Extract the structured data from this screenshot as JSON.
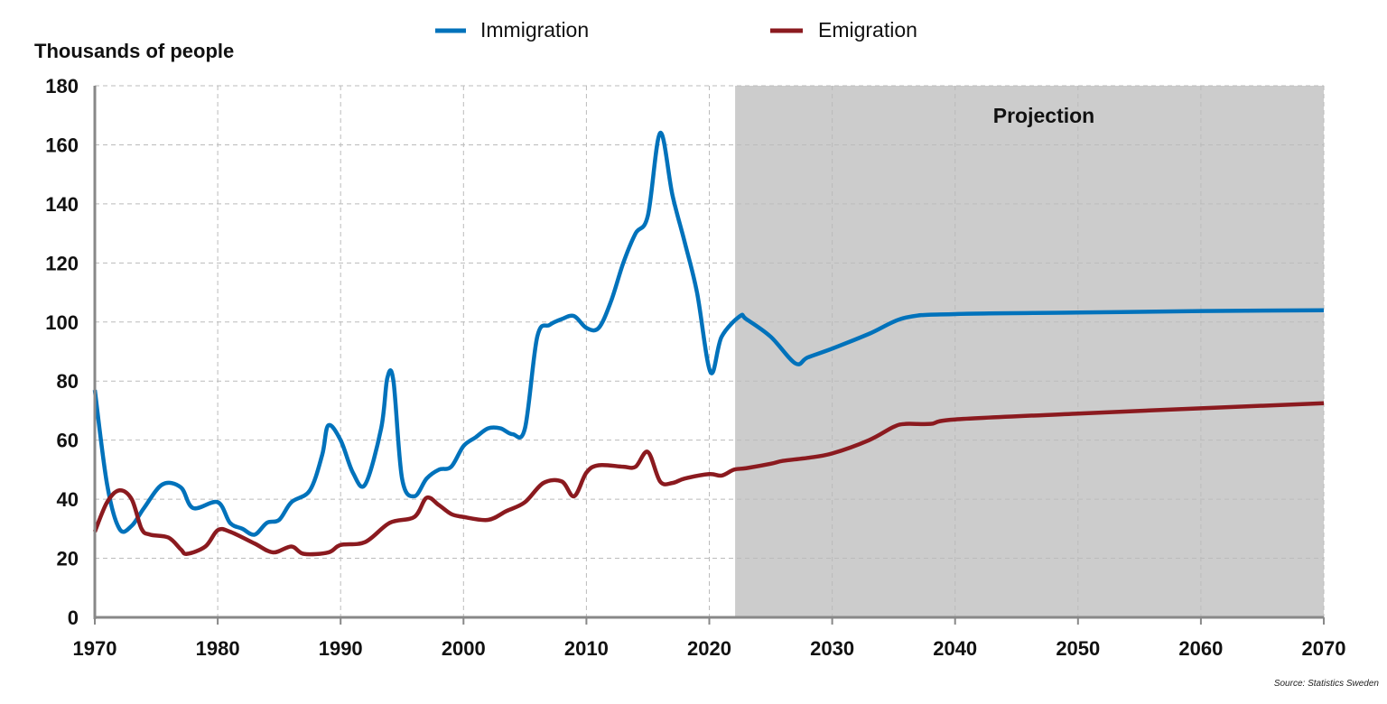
{
  "chart_data": {
    "type": "line",
    "title": "",
    "ylabel": "Thousands of people",
    "xlabel": "",
    "xlim": [
      1970,
      2070
    ],
    "ylim": [
      0,
      180
    ],
    "xticks": [
      1970,
      1980,
      1990,
      2000,
      2010,
      2020,
      2030,
      2040,
      2050,
      2060,
      2070
    ],
    "yticks": [
      0,
      20,
      40,
      60,
      80,
      100,
      120,
      140,
      160,
      180
    ],
    "grid": true,
    "legend_position": "top-center",
    "projection": {
      "label": "Projection",
      "start": 2022.1,
      "end": 2070,
      "color": "#cccccc"
    },
    "source": "Source: Statistics Sweden",
    "series": [
      {
        "name": "Immigration",
        "color": "#0072bb",
        "x": [
          1970,
          1971,
          1972,
          1973,
          1974,
          1975.5,
          1977,
          1978,
          1980,
          1981,
          1982,
          1983,
          1984,
          1985,
          1986,
          1987.5,
          1988.5,
          1989,
          1990,
          1991,
          1992,
          1993.3,
          1993.8,
          1994.3,
          1995,
          1996,
          1997,
          1998,
          1999,
          2000,
          2001,
          2002,
          2003,
          2004,
          2005,
          2006,
          2007,
          2008,
          2009,
          2010,
          2011,
          2012,
          2013,
          2014,
          2015,
          2016,
          2017,
          2018,
          2019,
          2020.1,
          2021,
          2022.5,
          2023,
          2025,
          2027,
          2028,
          2030,
          2033,
          2036,
          2040,
          2050,
          2060,
          2070
        ],
        "y": [
          77,
          45,
          30,
          31,
          37,
          45,
          44,
          37,
          39,
          32,
          30,
          28,
          32,
          33,
          39,
          43,
          55,
          65,
          60,
          49,
          45,
          64,
          81,
          80,
          47,
          41,
          47,
          50,
          51,
          58,
          61,
          64,
          64,
          62,
          64,
          95,
          99,
          101,
          102,
          98,
          98,
          107,
          120,
          130,
          136,
          164,
          143,
          127,
          110,
          83,
          95,
          102,
          101,
          95,
          86,
          88,
          91,
          96,
          101.5,
          102.7,
          103.2,
          103.7,
          104
        ]
      },
      {
        "name": "Emigration",
        "color": "#8b1a1f",
        "x": [
          1970,
          1971,
          1972,
          1973,
          1973.8,
          1974.5,
          1976,
          1977,
          1977.5,
          1979,
          1980,
          1981,
          1983,
          1984.5,
          1986,
          1987,
          1989,
          1990,
          1992,
          1994,
          1996,
          1997,
          1998,
          1999,
          2000,
          2002,
          2003.5,
          2005,
          2006.5,
          2008,
          2009,
          2010,
          2011,
          2013,
          2014,
          2015,
          2016,
          2017,
          2018,
          2020,
          2021,
          2022,
          2023,
          2025,
          2026,
          2028,
          2030,
          2033,
          2035,
          2036,
          2038,
          2040,
          2050,
          2060,
          2070
        ],
        "y": [
          29,
          39,
          43,
          40,
          30,
          28,
          27,
          23,
          21.5,
          24,
          29.5,
          29,
          25,
          22,
          24,
          21.5,
          22,
          24.5,
          25.5,
          32,
          34,
          40.5,
          38,
          35,
          34,
          33,
          36,
          39,
          45.5,
          46,
          41,
          49,
          51.5,
          51,
          51,
          56,
          46,
          45.5,
          47,
          48.5,
          48,
          50,
          50.5,
          52,
          53,
          54,
          55.5,
          60,
          64.5,
          65.5,
          65.5,
          67,
          69,
          70.8,
          72.5
        ]
      }
    ]
  }
}
